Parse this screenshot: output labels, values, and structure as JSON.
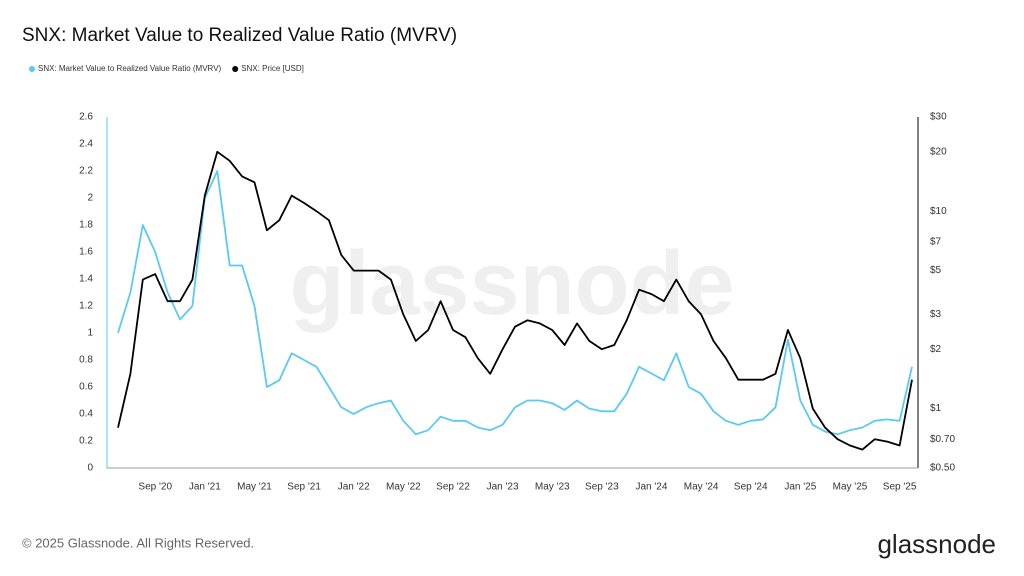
{
  "chart_data": {
    "type": "line",
    "title": "SNX: Market Value to Realized Value Ratio (MVRV)",
    "watermark": "glassnode",
    "x": [
      "2020-06",
      "2020-07",
      "2020-08",
      "2020-09",
      "2020-10",
      "2020-11",
      "2020-12",
      "2021-01",
      "2021-02",
      "2021-03",
      "2021-04",
      "2021-05",
      "2021-06",
      "2021-07",
      "2021-08",
      "2021-09",
      "2021-10",
      "2021-11",
      "2021-12",
      "2022-01",
      "2022-02",
      "2022-03",
      "2022-04",
      "2022-05",
      "2022-06",
      "2022-07",
      "2022-08",
      "2022-09",
      "2022-10",
      "2022-11",
      "2022-12",
      "2023-01",
      "2023-02",
      "2023-03",
      "2023-04",
      "2023-05",
      "2023-06",
      "2023-07",
      "2023-08",
      "2023-09",
      "2023-10",
      "2023-11",
      "2023-12",
      "2024-01",
      "2024-02",
      "2024-03",
      "2024-04",
      "2024-05",
      "2024-06",
      "2024-07",
      "2024-08",
      "2024-09",
      "2024-10",
      "2024-11",
      "2024-12",
      "2025-01",
      "2025-02",
      "2025-03",
      "2025-04",
      "2025-05",
      "2025-06",
      "2025-07",
      "2025-08",
      "2025-09",
      "2025-10"
    ],
    "xlim": [
      "2020-06",
      "2025-10"
    ],
    "xticks": [
      {
        "value": "2020-09",
        "label": "Sep '20"
      },
      {
        "value": "2021-01",
        "label": "Jan '21"
      },
      {
        "value": "2021-05",
        "label": "May '21"
      },
      {
        "value": "2021-09",
        "label": "Sep '21"
      },
      {
        "value": "2022-01",
        "label": "Jan '22"
      },
      {
        "value": "2022-05",
        "label": "May '22"
      },
      {
        "value": "2022-09",
        "label": "Sep '22"
      },
      {
        "value": "2023-01",
        "label": "Jan '23"
      },
      {
        "value": "2023-05",
        "label": "May '23"
      },
      {
        "value": "2023-09",
        "label": "Sep '23"
      },
      {
        "value": "2024-01",
        "label": "Jan '24"
      },
      {
        "value": "2024-05",
        "label": "May '24"
      },
      {
        "value": "2024-09",
        "label": "Sep '24"
      },
      {
        "value": "2025-01",
        "label": "Jan '25"
      },
      {
        "value": "2025-05",
        "label": "May '25"
      },
      {
        "value": "2025-09",
        "label": "Sep '25"
      }
    ],
    "ylim": [
      0,
      2.6
    ],
    "yticks": [
      0,
      0.2,
      0.4,
      0.6,
      0.8,
      1,
      1.2,
      1.4,
      1.6,
      1.8,
      2,
      2.2,
      2.4,
      2.6
    ],
    "y2lim": [
      0.5,
      30
    ],
    "y2log": true,
    "y2ticks": [
      {
        "value": 0.5,
        "label": "$0.50"
      },
      {
        "value": 0.7,
        "label": "$0.70"
      },
      {
        "value": 1,
        "label": "$1"
      },
      {
        "value": 2,
        "label": "$2"
      },
      {
        "value": 3,
        "label": "$3"
      },
      {
        "value": 5,
        "label": "$5"
      },
      {
        "value": 7,
        "label": "$7"
      },
      {
        "value": 10,
        "label": "$10"
      },
      {
        "value": 20,
        "label": "$20"
      },
      {
        "value": 30,
        "label": "$30"
      }
    ],
    "grid": false,
    "series": [
      {
        "name": "SNX: Market Value to Realized Value Ratio (MVRV)",
        "color": "#5bc8f5",
        "values": [
          1.0,
          1.3,
          1.8,
          1.6,
          1.3,
          1.1,
          1.2,
          2.0,
          2.2,
          1.5,
          1.5,
          1.2,
          0.6,
          0.65,
          0.85,
          0.8,
          0.75,
          0.6,
          0.45,
          0.4,
          0.45,
          0.48,
          0.5,
          0.35,
          0.25,
          0.28,
          0.38,
          0.35,
          0.35,
          0.3,
          0.28,
          0.32,
          0.45,
          0.5,
          0.5,
          0.48,
          0.43,
          0.5,
          0.44,
          0.42,
          0.42,
          0.55,
          0.75,
          0.7,
          0.65,
          0.85,
          0.6,
          0.55,
          0.42,
          0.35,
          0.32,
          0.35,
          0.36,
          0.45,
          0.95,
          0.5,
          0.32,
          0.27,
          0.25,
          0.28,
          0.3,
          0.35,
          0.36,
          0.35,
          0.75
        ]
      },
      {
        "name": "SNX: Price [USD]",
        "color": "#000000",
        "axis": "y2",
        "values": [
          0.8,
          1.5,
          4.5,
          4.8,
          3.5,
          3.5,
          4.5,
          12,
          20,
          18,
          15,
          14,
          8,
          9,
          12,
          11,
          10,
          9,
          6,
          5,
          5,
          5,
          4.5,
          3,
          2.2,
          2.5,
          3.5,
          2.5,
          2.3,
          1.8,
          1.5,
          2.0,
          2.6,
          2.8,
          2.7,
          2.5,
          2.1,
          2.7,
          2.2,
          2.0,
          2.1,
          2.8,
          4.0,
          3.8,
          3.5,
          4.5,
          3.5,
          3.0,
          2.2,
          1.8,
          1.4,
          1.4,
          1.4,
          1.5,
          2.5,
          1.8,
          1.0,
          0.8,
          0.7,
          0.65,
          0.62,
          0.7,
          0.68,
          0.65,
          1.4
        ]
      }
    ]
  },
  "footer": {
    "copyright": "© 2025 Glassnode. All Rights Reserved.",
    "logo": "glassnode"
  }
}
